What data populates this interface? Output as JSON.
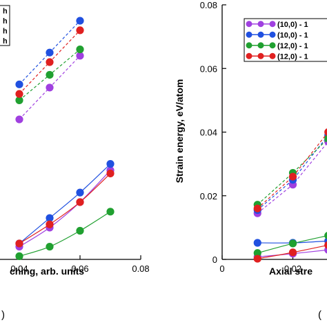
{
  "chart_data": [
    {
      "type": "scatter",
      "panel_label": "",
      "xlabel": "ching, arb. units",
      "ylabel": "",
      "xlim": [
        0.0,
        0.08
      ],
      "ylim": [
        0.0,
        0.08
      ],
      "xticks": [
        "0.04",
        "0.06",
        "0.08"
      ],
      "legend_entries": [
        "h",
        "h",
        "h",
        "h"
      ],
      "legend_colors": [
        "#a040e0",
        "#2050e0",
        "#20a030",
        "#e02020"
      ],
      "series": [
        {
          "color": "#a040e0",
          "style": "dashed",
          "x": [
            0.04,
            0.05,
            0.06
          ],
          "y": [
            0.044,
            0.054,
            0.064
          ]
        },
        {
          "color": "#2050e0",
          "style": "dashed",
          "x": [
            0.04,
            0.05,
            0.06
          ],
          "y": [
            0.055,
            0.065,
            0.075
          ]
        },
        {
          "color": "#20a030",
          "style": "dashed",
          "x": [
            0.04,
            0.05,
            0.06
          ],
          "y": [
            0.05,
            0.058,
            0.066
          ]
        },
        {
          "color": "#e02020",
          "style": "dashed",
          "x": [
            0.04,
            0.05,
            0.06
          ],
          "y": [
            0.052,
            0.062,
            0.072
          ]
        },
        {
          "color": "#a040e0",
          "style": "solid",
          "x": [
            0.04,
            0.05,
            0.06,
            0.07
          ],
          "y": [
            0.004,
            0.01,
            0.018,
            0.028
          ]
        },
        {
          "color": "#2050e0",
          "style": "solid",
          "x": [
            0.04,
            0.05,
            0.06,
            0.07
          ],
          "y": [
            0.005,
            0.013,
            0.021,
            0.03
          ]
        },
        {
          "color": "#20a030",
          "style": "solid",
          "x": [
            0.04,
            0.05,
            0.06,
            0.07
          ],
          "y": [
            0.001,
            0.004,
            0.009,
            0.015
          ]
        },
        {
          "color": "#e02020",
          "style": "solid",
          "x": [
            0.04,
            0.05,
            0.06,
            0.07
          ],
          "y": [
            0.005,
            0.011,
            0.018,
            0.027
          ]
        }
      ]
    },
    {
      "type": "scatter",
      "panel_label": "",
      "xlabel": "Axial stre",
      "ylabel": "Strain energy, eV/atom",
      "xlim": [
        0.0,
        0.04
      ],
      "ylim": [
        0.0,
        0.08
      ],
      "xticks": [
        "0",
        "0.02"
      ],
      "yticks": [
        "0",
        "0.02",
        "0.04",
        "0.06",
        "0.08"
      ],
      "legend_entries": [
        "(10,0) - 1",
        "(10,0) - 1",
        "(12,0) - 1",
        "(12,0) - 1"
      ],
      "legend_colors": [
        "#a040e0",
        "#2050e0",
        "#20a030",
        "#e02020"
      ],
      "series": [
        {
          "color": "#a040e0",
          "style": "dashed",
          "x": [
            0.01,
            0.02,
            0.03
          ],
          "y": [
            0.0145,
            0.0235,
            0.037
          ]
        },
        {
          "color": "#2050e0",
          "style": "dashed",
          "x": [
            0.01,
            0.02,
            0.03
          ],
          "y": [
            0.0155,
            0.025,
            0.039
          ]
        },
        {
          "color": "#20a030",
          "style": "dashed",
          "x": [
            0.01,
            0.02,
            0.03
          ],
          "y": [
            0.0172,
            0.0272,
            0.038
          ]
        },
        {
          "color": "#e02020",
          "style": "dashed",
          "x": [
            0.01,
            0.02,
            0.03
          ],
          "y": [
            0.016,
            0.026,
            0.04
          ]
        },
        {
          "color": "#a040e0",
          "style": "solid",
          "x": [
            0.01,
            0.02,
            0.03
          ],
          "y": [
            0.0008,
            0.0018,
            0.003
          ]
        },
        {
          "color": "#2050e0",
          "style": "solid",
          "x": [
            0.01,
            0.02,
            0.03
          ],
          "y": [
            0.0052,
            0.0052,
            0.0058
          ]
        },
        {
          "color": "#20a030",
          "style": "solid",
          "x": [
            0.01,
            0.02,
            0.03
          ],
          "y": [
            0.002,
            0.005,
            0.0075
          ]
        },
        {
          "color": "#e02020",
          "style": "solid",
          "x": [
            0.01,
            0.02,
            0.03
          ],
          "y": [
            0.0002,
            0.0022,
            0.0045
          ]
        }
      ]
    }
  ]
}
